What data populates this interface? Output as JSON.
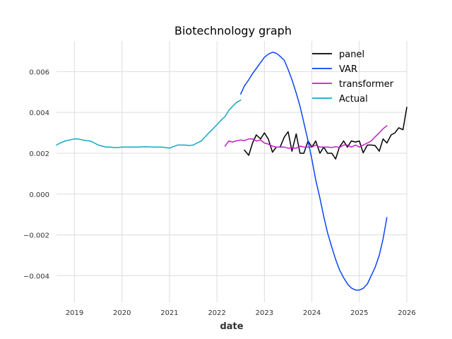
{
  "chart_data": {
    "type": "line",
    "title": "Biotechnology graph",
    "xlabel": "date",
    "ylabel": "",
    "xlim": [
      2018.62,
      2026.0
    ],
    "ylim": [
      -0.0053,
      0.0075
    ],
    "x_ticks": [
      2019,
      2020,
      2021,
      2022,
      2023,
      2024,
      2025,
      2026
    ],
    "x_tick_labels": [
      "2019",
      "2020",
      "2021",
      "2022",
      "2023",
      "2024",
      "2025",
      "2026"
    ],
    "y_ticks": [
      -0.004,
      -0.002,
      0.0,
      0.002,
      0.004,
      0.006
    ],
    "y_tick_labels": [
      "−0.004",
      "−0.002",
      "0.000",
      "0.002",
      "0.004",
      "0.006"
    ],
    "grid": true,
    "legend_position": "top-right",
    "series": [
      {
        "name": "panel",
        "color": "#000000",
        "x": [
          2022.58,
          2022.67,
          2022.75,
          2022.83,
          2022.92,
          2023.0,
          2023.08,
          2023.17,
          2023.25,
          2023.33,
          2023.42,
          2023.5,
          2023.58,
          2023.67,
          2023.75,
          2023.83,
          2023.92,
          2024.0,
          2024.08,
          2024.17,
          2024.25,
          2024.33,
          2024.42,
          2024.5,
          2024.58,
          2024.67,
          2024.75,
          2024.83,
          2024.92,
          2025.0,
          2025.08,
          2025.17,
          2025.25,
          2025.33,
          2025.42,
          2025.5,
          2025.58,
          2025.67,
          2025.75,
          2025.83,
          2025.92,
          2026.0
        ],
        "y": [
          0.00215,
          0.0019,
          0.0025,
          0.0029,
          0.0027,
          0.003,
          0.0027,
          0.00205,
          0.0023,
          0.0023,
          0.0028,
          0.00305,
          0.0021,
          0.00295,
          0.002,
          0.002,
          0.0026,
          0.0023,
          0.0026,
          0.002,
          0.0023,
          0.002,
          0.002,
          0.00172,
          0.0023,
          0.0026,
          0.0023,
          0.0026,
          0.00255,
          0.0026,
          0.00202,
          0.0024,
          0.0024,
          0.00238,
          0.0021,
          0.0027,
          0.0025,
          0.0029,
          0.003,
          0.00325,
          0.00315,
          0.00425
        ]
      },
      {
        "name": "VAR",
        "color": "#0a45f5",
        "x": [
          2022.5,
          2022.58,
          2022.67,
          2022.75,
          2022.83,
          2022.92,
          2023.0,
          2023.08,
          2023.17,
          2023.25,
          2023.33,
          2023.42,
          2023.5,
          2023.58,
          2023.67,
          2023.75,
          2023.83,
          2023.92,
          2024.0,
          2024.08,
          2024.17,
          2024.25,
          2024.33,
          2024.42,
          2024.5,
          2024.58,
          2024.67,
          2024.75,
          2024.83,
          2024.92,
          2025.0,
          2025.08,
          2025.17,
          2025.25,
          2025.33,
          2025.42,
          2025.5,
          2025.58
        ],
        "y": [
          0.0049,
          0.0053,
          0.0056,
          0.0059,
          0.00615,
          0.00645,
          0.0067,
          0.00685,
          0.00695,
          0.0069,
          0.00675,
          0.00655,
          0.0061,
          0.0056,
          0.00495,
          0.0043,
          0.0035,
          0.0026,
          0.0017,
          0.0007,
          -0.0002,
          -0.0011,
          -0.0019,
          -0.0026,
          -0.0032,
          -0.0037,
          -0.0041,
          -0.0044,
          -0.0046,
          -0.0047,
          -0.0047,
          -0.00462,
          -0.0044,
          -0.004,
          -0.0036,
          -0.003,
          -0.0022,
          -0.00115
        ]
      },
      {
        "name": "transformer",
        "color": "#c21cc9",
        "x": [
          2022.17,
          2022.25,
          2022.33,
          2022.42,
          2022.5,
          2022.58,
          2022.67,
          2022.75,
          2022.83,
          2022.92,
          2023.0,
          2023.08,
          2023.17,
          2023.25,
          2023.33,
          2023.42,
          2023.5,
          2023.58,
          2023.67,
          2023.75,
          2023.83,
          2023.92,
          2024.0,
          2024.08,
          2024.17,
          2024.25,
          2024.33,
          2024.42,
          2024.5,
          2024.58,
          2024.67,
          2024.75,
          2024.83,
          2024.92,
          2025.0,
          2025.08,
          2025.17,
          2025.25,
          2025.33,
          2025.42,
          2025.5,
          2025.58
        ],
        "y": [
          0.00235,
          0.0026,
          0.00255,
          0.00262,
          0.00265,
          0.00262,
          0.0027,
          0.0027,
          0.0026,
          0.00265,
          0.0025,
          0.00245,
          0.00235,
          0.0023,
          0.0023,
          0.0023,
          0.00225,
          0.00225,
          0.00225,
          0.00235,
          0.0023,
          0.0023,
          0.0023,
          0.0024,
          0.0023,
          0.0023,
          0.0023,
          0.00228,
          0.00232,
          0.00228,
          0.0024,
          0.0024,
          0.0023,
          0.0024,
          0.0023,
          0.0024,
          0.0025,
          0.0026,
          0.0028,
          0.003,
          0.0032,
          0.00335
        ]
      },
      {
        "name": "Actual",
        "color": "#10a8c4",
        "x": [
          2018.62,
          2018.7,
          2018.8,
          2018.9,
          2019.0,
          2019.08,
          2019.17,
          2019.25,
          2019.33,
          2019.42,
          2019.5,
          2019.58,
          2019.67,
          2019.75,
          2019.83,
          2019.92,
          2020.0,
          2020.17,
          2020.33,
          2020.5,
          2020.67,
          2020.83,
          2020.92,
          2021.0,
          2021.08,
          2021.17,
          2021.25,
          2021.33,
          2021.42,
          2021.5,
          2021.58,
          2021.67,
          2021.75,
          2021.83,
          2021.92,
          2022.0,
          2022.08,
          2022.17,
          2022.25,
          2022.33,
          2022.42,
          2022.5
        ],
        "y": [
          0.0024,
          0.0025,
          0.0026,
          0.00265,
          0.0027,
          0.0027,
          0.00265,
          0.00262,
          0.0026,
          0.0025,
          0.0024,
          0.00235,
          0.0023,
          0.0023,
          0.00228,
          0.00228,
          0.0023,
          0.0023,
          0.0023,
          0.00232,
          0.0023,
          0.0023,
          0.00228,
          0.00225,
          0.00232,
          0.0024,
          0.0024,
          0.0024,
          0.00238,
          0.0024,
          0.0025,
          0.0026,
          0.0028,
          0.003,
          0.0032,
          0.0034,
          0.0036,
          0.0038,
          0.0041,
          0.0043,
          0.0045,
          0.0046
        ]
      }
    ]
  }
}
